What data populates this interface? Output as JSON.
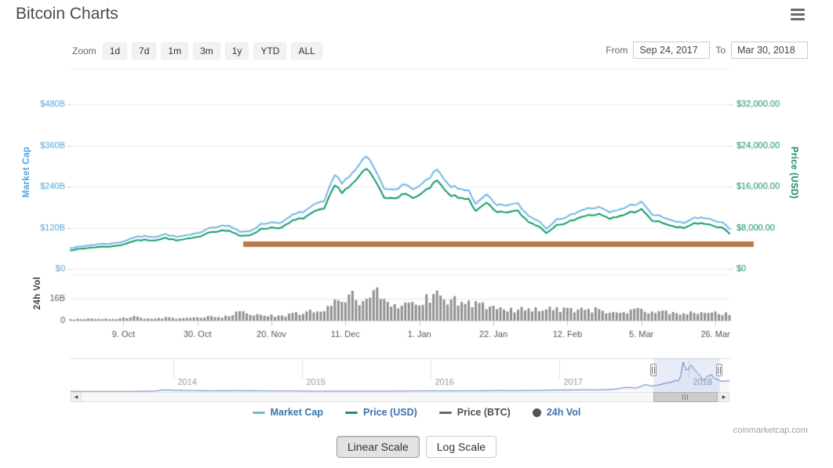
{
  "header": {
    "title": "Bitcoin Charts"
  },
  "controls": {
    "zoom_label": "Zoom",
    "zoom_buttons": [
      "1d",
      "7d",
      "1m",
      "3m",
      "1y",
      "YTD",
      "ALL"
    ],
    "from_label": "From",
    "from_value": "Sep 24, 2017",
    "to_label": "To",
    "to_value": "Mar 30, 2018"
  },
  "icons": {
    "menu": "hamburger-icon",
    "scroll_left_glyph": "◂",
    "scroll_right_glyph": "▸"
  },
  "legend": {
    "items": [
      {
        "label": "Market Cap",
        "marker": "line",
        "color": "#74b7e3",
        "label_color": "#3b73ae"
      },
      {
        "label": "Price (USD)",
        "marker": "line",
        "color": "#0f9a6a",
        "label_color": "#3b73ae"
      },
      {
        "label": "Price (BTC)",
        "marker": "line",
        "color": "#666666",
        "label_color": "#4d4d4d"
      },
      {
        "label": "24h Vol",
        "marker": "circle",
        "color": "#545454",
        "label_color": "#3b73ae"
      }
    ]
  },
  "footer": {
    "linear_scale_label": "Linear Scale",
    "log_scale_label": "Log Scale",
    "watermark": "coinmarketcap.com"
  },
  "chart_data": {
    "type": "line",
    "x_range_dates": [
      "Sep 24, 2017",
      "Mar 30, 2018"
    ],
    "days_total": 187,
    "x_ticks": [
      {
        "label": "9. Oct",
        "day": 15
      },
      {
        "label": "30. Oct",
        "day": 36
      },
      {
        "label": "20. Nov",
        "day": 57
      },
      {
        "label": "11. Dec",
        "day": 78
      },
      {
        "label": "1. Jan",
        "day": 99
      },
      {
        "label": "22. Jan",
        "day": 120
      },
      {
        "label": "12. Feb",
        "day": 141
      },
      {
        "label": "5. Mar",
        "day": 162
      },
      {
        "label": "26. Mar",
        "day": 183
      }
    ],
    "axes": {
      "market_cap": {
        "title": "Market Cap",
        "color": "#4fa6d8",
        "side": "left",
        "tick_labels": [
          "$480B",
          "$360B",
          "$240B",
          "$120B",
          "$0"
        ],
        "tick_values_b": [
          480,
          360,
          240,
          120,
          0
        ]
      },
      "price_usd": {
        "title": "Price (USD)",
        "color": "#0f8f6e",
        "side": "right",
        "tick_labels": [
          "$32,000.00",
          "$24,000.00",
          "$16,000.00",
          "$8,000.00",
          "$0"
        ],
        "tick_values": [
          32000,
          24000,
          16000,
          8000,
          0
        ]
      }
    },
    "sample_days": [
      0,
      3,
      6,
      9,
      12,
      15,
      18,
      21,
      24,
      27,
      30,
      33,
      36,
      39,
      42,
      45,
      48,
      51,
      54,
      57,
      60,
      63,
      66,
      69,
      72,
      75,
      77,
      80,
      84,
      86,
      89,
      92,
      95,
      98,
      101,
      104,
      107,
      110,
      113,
      115,
      118,
      121,
      124,
      127,
      130,
      133,
      135,
      138,
      141,
      144,
      147,
      150,
      153,
      156,
      159,
      162,
      165,
      168,
      171,
      174,
      177,
      180,
      183,
      185,
      187
    ],
    "series": [
      {
        "name": "Market Cap",
        "axis": "market_cap",
        "unit": "$B",
        "color": "#74b7e3",
        "values": [
          62,
          65,
          70,
          73,
          74,
          80,
          92,
          95,
          94,
          101,
          93,
          97,
          103,
          119,
          125,
          126,
          107,
          111,
          130,
          136,
          135,
          157,
          167,
          185,
          197,
          273,
          253,
          278,
          327,
          298,
          233,
          236,
          243,
          234,
          256,
          288,
          246,
          233,
          231,
          187,
          216,
          184,
          187,
          189,
          154,
          140,
          117,
          147,
          150,
          169,
          176,
          179,
          164,
          174,
          186,
          194,
          159,
          152,
          139,
          133,
          150,
          147,
          139,
          135,
          116
        ]
      },
      {
        "name": "Price (USD)",
        "axis": "price_usd",
        "unit": "$",
        "color": "#0f9a6a",
        "values": [
          3660,
          3880,
          4170,
          4320,
          4370,
          4770,
          5450,
          5640,
          5590,
          6000,
          5520,
          5780,
          6130,
          7080,
          7400,
          7460,
          6350,
          6600,
          7700,
          8040,
          8010,
          9330,
          9888,
          10975,
          11700,
          16200,
          15000,
          16480,
          19400,
          17700,
          13800,
          14000,
          14400,
          13900,
          15200,
          17100,
          14600,
          13800,
          13700,
          11100,
          12800,
          10900,
          11100,
          11200,
          9100,
          8300,
          6950,
          8700,
          8900,
          10000,
          10400,
          10600,
          9700,
          10300,
          11000,
          11500,
          9400,
          9000,
          8200,
          7900,
          8900,
          8700,
          8200,
          7960,
          6850
        ]
      }
    ],
    "annotation_line": {
      "description": "thick horizontal drawn trendline",
      "color": "#b87b4d",
      "price_usd": 4800,
      "start_day": 49,
      "extends_past_plot_right": true,
      "thickness_px": 7
    },
    "volume": {
      "title": "24h Vol",
      "bar_color": "#8f8f8f",
      "tick_labels": [
        "16B",
        "0"
      ],
      "tick_values_b": [
        16,
        0
      ],
      "values_b": [
        1.0,
        1.1,
        1.6,
        1.3,
        1.2,
        2.0,
        2.9,
        1.8,
        1.5,
        2.1,
        1.7,
        1.6,
        2.2,
        2.8,
        2.5,
        3.2,
        6.6,
        3.5,
        4.0,
        3.7,
        3.4,
        5.0,
        6.3,
        6.6,
        7.0,
        14.0,
        12.2,
        17.4,
        13.0,
        22.5,
        16.8,
        12.0,
        13.2,
        12.0,
        15.5,
        18.0,
        16.2,
        13.1,
        12.4,
        14.0,
        10.4,
        9.2,
        8.4,
        7.4,
        9.0,
        8.2,
        9.6,
        8.4,
        7.6,
        8.0,
        7.2,
        8.2,
        6.8,
        7.1,
        7.0,
        8.0,
        6.7,
        6.0,
        6.2,
        5.7,
        5.9,
        5.4,
        5.6,
        5.2,
        4.8
      ]
    },
    "navigator": {
      "year_labels": [
        "2014",
        "2015",
        "2016",
        "2017",
        "2018"
      ],
      "domain_years": [
        2013.2,
        2018.32
      ],
      "selection_years": [
        2017.73,
        2018.245
      ],
      "line_color": "#5b7dc7",
      "selection_fill": "rgba(91,125,199,0.15)",
      "points_year_price": [
        [
          2013.25,
          120
        ],
        [
          2013.6,
          100
        ],
        [
          2013.85,
          210
        ],
        [
          2013.92,
          1100
        ],
        [
          2014.0,
          770
        ],
        [
          2014.15,
          630
        ],
        [
          2014.3,
          450
        ],
        [
          2014.5,
          590
        ],
        [
          2014.75,
          380
        ],
        [
          2015.0,
          315
        ],
        [
          2015.1,
          220
        ],
        [
          2015.3,
          245
        ],
        [
          2015.55,
          230
        ],
        [
          2015.8,
          310
        ],
        [
          2015.95,
          430
        ],
        [
          2016.1,
          415
        ],
        [
          2016.35,
          450
        ],
        [
          2016.5,
          670
        ],
        [
          2016.65,
          600
        ],
        [
          2016.85,
          730
        ],
        [
          2017.0,
          970
        ],
        [
          2017.12,
          1050
        ],
        [
          2017.2,
          1190
        ],
        [
          2017.28,
          1080
        ],
        [
          2017.4,
          1350
        ],
        [
          2017.45,
          1800
        ],
        [
          2017.5,
          2500
        ],
        [
          2017.55,
          2700
        ],
        [
          2017.58,
          2200
        ],
        [
          2017.62,
          2870
        ],
        [
          2017.67,
          4600
        ],
        [
          2017.7,
          3700
        ],
        [
          2017.73,
          3660
        ],
        [
          2017.78,
          4400
        ],
        [
          2017.83,
          5600
        ],
        [
          2017.87,
          6100
        ],
        [
          2017.9,
          7400
        ],
        [
          2017.92,
          6400
        ],
        [
          2017.94,
          9900
        ],
        [
          2017.96,
          19400
        ],
        [
          2017.98,
          14500
        ],
        [
          2018.0,
          13900
        ],
        [
          2018.02,
          17100
        ],
        [
          2018.05,
          14000
        ],
        [
          2018.08,
          11100
        ],
        [
          2018.1,
          9100
        ],
        [
          2018.12,
          6950
        ],
        [
          2018.15,
          10000
        ],
        [
          2018.18,
          11000
        ],
        [
          2018.2,
          8500
        ],
        [
          2018.23,
          7960
        ],
        [
          2018.245,
          6850
        ]
      ]
    }
  }
}
